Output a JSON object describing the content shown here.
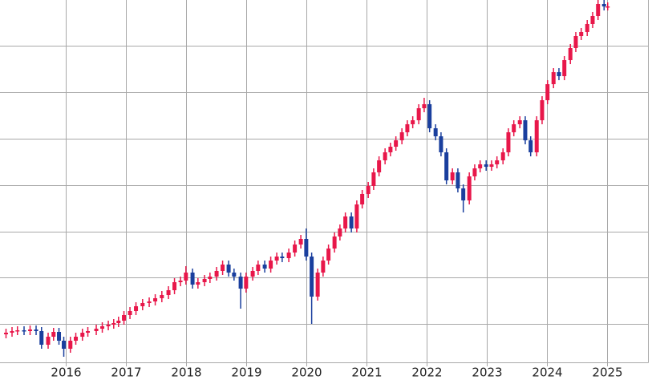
{
  "chart_data": {
    "type": "candlestick",
    "x": [
      2015.01,
      2015.11,
      2015.2,
      2015.31,
      2015.41,
      2015.51,
      2015.6,
      2015.71,
      2015.8,
      2015.89,
      2015.97,
      2016.08,
      2016.17,
      2016.28,
      2016.37,
      2016.51,
      2016.61,
      2016.71,
      2016.8,
      2016.88,
      2016.97,
      2017.07,
      2017.17,
      2017.28,
      2017.39,
      2017.49,
      2017.6,
      2017.71,
      2017.81,
      2017.91,
      2018.0,
      2018.11,
      2018.2,
      2018.31,
      2018.4,
      2018.51,
      2018.61,
      2018.71,
      2018.8,
      2018.91,
      2019.0,
      2019.11,
      2019.2,
      2019.31,
      2019.41,
      2019.51,
      2019.6,
      2019.71,
      2019.81,
      2019.91,
      2020.0,
      2020.09,
      2020.19,
      2020.28,
      2020.37,
      2020.47,
      2020.56,
      2020.65,
      2020.75,
      2020.84,
      2020.93,
      2021.03,
      2021.12,
      2021.21,
      2021.31,
      2021.4,
      2021.49,
      2021.59,
      2021.68,
      2021.77,
      2021.87,
      2021.96,
      2022.05,
      2022.15,
      2022.24,
      2022.33,
      2022.43,
      2022.52,
      2022.61,
      2022.71,
      2022.8,
      2022.89,
      2022.99,
      2023.08,
      2023.17,
      2023.27,
      2023.36,
      2023.45,
      2023.55,
      2023.64,
      2023.73,
      2023.83,
      2023.92,
      2024.01,
      2024.11,
      2024.2,
      2024.29,
      2024.39,
      2024.48,
      2024.57,
      2024.67,
      2024.76,
      2024.85,
      2024.95,
      2025.01
    ],
    "open": [
      45,
      47,
      49,
      50,
      49,
      51,
      49,
      32,
      42,
      48,
      37,
      27,
      37,
      42,
      47,
      49,
      52,
      55,
      57,
      59,
      62,
      69,
      74,
      80,
      84,
      86,
      90,
      94,
      100,
      110,
      112,
      122,
      107,
      110,
      114,
      117,
      124,
      132,
      122,
      117,
      102,
      117,
      124,
      132,
      127,
      137,
      142,
      140,
      147,
      157,
      164,
      142,
      92,
      122,
      137,
      152,
      167,
      177,
      192,
      177,
      207,
      220,
      230,
      247,
      262,
      272,
      279,
      287,
      297,
      307,
      312,
      327,
      332,
      302,
      292,
      272,
      237,
      247,
      227,
      212,
      242,
      252,
      257,
      254,
      257,
      262,
      272,
      297,
      307,
      312,
      287,
      272,
      312,
      337,
      357,
      372,
      367,
      387,
      402,
      417,
      422,
      432,
      442,
      457,
      454
    ],
    "high": [
      52,
      54,
      55,
      55,
      56,
      56,
      54,
      47,
      53,
      53,
      42,
      42,
      47,
      52,
      54,
      57,
      60,
      62,
      64,
      67,
      74,
      79,
      85,
      89,
      91,
      95,
      99,
      105,
      115,
      117,
      130,
      127,
      115,
      119,
      122,
      129,
      137,
      137,
      127,
      122,
      122,
      129,
      137,
      137,
      142,
      147,
      147,
      152,
      162,
      169,
      177,
      147,
      127,
      142,
      157,
      172,
      182,
      197,
      197,
      212,
      225,
      235,
      252,
      267,
      277,
      284,
      292,
      302,
      312,
      317,
      332,
      340,
      337,
      307,
      297,
      277,
      252,
      252,
      232,
      247,
      257,
      262,
      262,
      262,
      267,
      277,
      302,
      312,
      317,
      317,
      292,
      317,
      342,
      362,
      377,
      377,
      392,
      407,
      422,
      427,
      437,
      447,
      462,
      462,
      459
    ],
    "low": [
      40,
      42,
      44,
      44,
      44,
      44,
      27,
      27,
      37,
      32,
      17,
      22,
      32,
      37,
      42,
      44,
      47,
      50,
      52,
      54,
      57,
      64,
      69,
      75,
      79,
      81,
      85,
      89,
      95,
      105,
      107,
      102,
      102,
      105,
      109,
      112,
      119,
      117,
      112,
      77,
      97,
      112,
      119,
      122,
      122,
      132,
      135,
      135,
      142,
      152,
      137,
      58,
      87,
      117,
      132,
      147,
      162,
      172,
      172,
      172,
      202,
      215,
      225,
      242,
      257,
      267,
      274,
      282,
      292,
      302,
      307,
      322,
      297,
      287,
      267,
      232,
      232,
      222,
      197,
      207,
      237,
      247,
      249,
      249,
      252,
      257,
      267,
      292,
      302,
      282,
      267,
      267,
      307,
      332,
      352,
      362,
      362,
      382,
      397,
      412,
      417,
      427,
      437,
      449,
      449
    ],
    "close": [
      47,
      49,
      50,
      49,
      51,
      49,
      32,
      42,
      48,
      37,
      27,
      37,
      42,
      47,
      49,
      52,
      55,
      57,
      59,
      62,
      69,
      74,
      80,
      84,
      86,
      90,
      94,
      100,
      110,
      112,
      122,
      107,
      110,
      114,
      117,
      124,
      132,
      122,
      117,
      102,
      117,
      124,
      132,
      127,
      137,
      142,
      140,
      147,
      157,
      164,
      142,
      92,
      122,
      137,
      152,
      167,
      177,
      192,
      177,
      207,
      220,
      230,
      247,
      262,
      272,
      279,
      287,
      297,
      307,
      312,
      327,
      332,
      302,
      292,
      272,
      237,
      247,
      227,
      212,
      242,
      252,
      257,
      254,
      257,
      262,
      272,
      297,
      307,
      312,
      287,
      272,
      312,
      337,
      357,
      372,
      367,
      387,
      402,
      417,
      422,
      432,
      442,
      457,
      454,
      454
    ],
    "up_color": "#e8174a",
    "down_color": "#1a3f9e",
    "xlim": [
      2014.91,
      2025.68
    ],
    "xticks": [
      2016,
      2017,
      2018,
      2019,
      2020,
      2021,
      2022,
      2023,
      2024,
      2025
    ],
    "ylim": [
      10,
      462
    ],
    "yticks": [
      58,
      116,
      173,
      231,
      289,
      347,
      405
    ],
    "grid": true
  }
}
